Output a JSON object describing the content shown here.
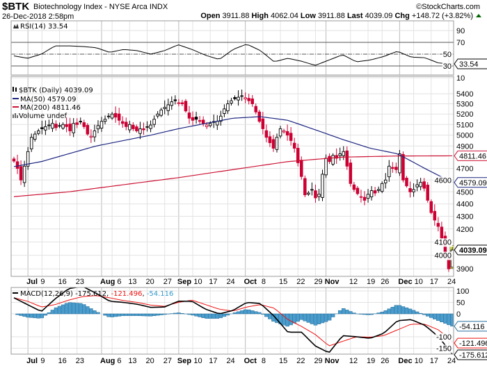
{
  "header": {
    "symbol": "$BTK",
    "name": "Biotechnology Index - NYSE Arca  INDX",
    "copyright": "©StockCharts.com",
    "datetime": "26-Dec-2018 2:58pm",
    "open_label": "Open",
    "open": "3911.88",
    "high_label": "High",
    "high": "4062.04",
    "low_label": "Low",
    "low": "3911.88",
    "last_label": "Last",
    "last": "4039.09",
    "chg_label": "Chg",
    "chg": "+148.72 (+3.82%)"
  },
  "rsi_panel": {
    "legend": "RSI(14) 33.54",
    "tag": "33.54"
  },
  "price_panel": {
    "legend_main": "$BTK (Daily) 4039.09",
    "legend_ma50": "MA(50) 4579.09",
    "legend_ma200": "MA(200) 4811.46",
    "legend_volume": "Volume undef",
    "tag_last": "4039.09",
    "tag_ma50": "4579.09",
    "tag_ma200": "4811.46"
  },
  "macd_panel": {
    "legend_name": "MACD(12,26,9)",
    "legend_macd": "-175.612",
    "legend_signal": "-121.496",
    "legend_hist": "-54.116",
    "tag_macd": "-175.612",
    "tag_signal": "-121.496",
    "tag_hist": "-54.116"
  },
  "colors": {
    "down": "#cc0033",
    "up": "#000000",
    "ma50": "#1a237e",
    "ma200": "#cc1133",
    "histogram": "#4a9ccc",
    "signal": "#ee1111",
    "rsi_fill": "#d9787f",
    "highlight": "#ffff66"
  },
  "chart_data": {
    "type": "candlestick",
    "title": "$BTK Biotechnology Index - NYSE Arca INDX (Daily)",
    "date_range": [
      "2018-06-26",
      "2018-12-26"
    ],
    "price_scale": "log",
    "price_ticks": [
      5400,
      5300,
      5200,
      5100,
      5000,
      4900,
      4700,
      4600,
      4500,
      4400,
      4300,
      4200,
      4100,
      4000,
      3900
    ],
    "x_ticks": [
      {
        "label": "Jul",
        "i": 4,
        "bold": true
      },
      {
        "label": "9",
        "i": 8
      },
      {
        "label": "16",
        "i": 13
      },
      {
        "label": "23",
        "i": 18
      },
      {
        "label": "Aug",
        "i": 25,
        "bold": true
      },
      {
        "label": "6",
        "i": 28
      },
      {
        "label": "13",
        "i": 33
      },
      {
        "label": "20",
        "i": 38
      },
      {
        "label": "27",
        "i": 43
      },
      {
        "label": "Sep",
        "i": 47,
        "bold": true
      },
      {
        "label": "10",
        "i": 51
      },
      {
        "label": "17",
        "i": 56
      },
      {
        "label": "24",
        "i": 61
      },
      {
        "label": "Oct",
        "i": 66,
        "bold": true
      },
      {
        "label": "8",
        "i": 71
      },
      {
        "label": "15",
        "i": 76
      },
      {
        "label": "22",
        "i": 81
      },
      {
        "label": "29",
        "i": 86
      },
      {
        "label": "Nov",
        "i": 89,
        "bold": true
      },
      {
        "label": "12",
        "i": 96
      },
      {
        "label": "19",
        "i": 101
      },
      {
        "label": "26",
        "i": 105
      },
      {
        "label": "Dec",
        "i": 110,
        "bold": true
      },
      {
        "label": "10",
        "i": 114
      },
      {
        "label": "17",
        "i": 119
      },
      {
        "label": "24",
        "i": 124
      }
    ],
    "price": {
      "close": [
        4765,
        4700,
        4600,
        4720,
        4850,
        4980,
        5010,
        5040,
        5060,
        5080,
        5095,
        5110,
        5070,
        5090,
        5100,
        5080,
        5040,
        5110,
        5100,
        5130,
        5080,
        5010,
        4990,
        5040,
        5090,
        5130,
        5150,
        5180,
        5200,
        5170,
        5140,
        5110,
        5080,
        5100,
        5060,
        5040,
        5060,
        5050,
        5080,
        5095,
        5150,
        5200,
        5240,
        5265,
        5290,
        5320,
        5330,
        5310,
        5300,
        5230,
        5160,
        5140,
        5150,
        5130,
        5110,
        5095,
        5110,
        5120,
        5130,
        5180,
        5250,
        5300,
        5330,
        5350,
        5365,
        5380,
        5360,
        5330,
        5300,
        5220,
        5130,
        5060,
        4980,
        4930,
        4880,
        4980,
        5060,
        5040,
        5000,
        4950,
        4880,
        4750,
        4630,
        4475,
        4490,
        4520,
        4450,
        4480,
        4650,
        4790,
        4760,
        4815,
        4790,
        4830,
        4850,
        4720,
        4570,
        4520,
        4485,
        4460,
        4430,
        4480,
        4510,
        4490,
        4520,
        4570,
        4600,
        4720,
        4700,
        4690,
        4830,
        4600,
        4550,
        4500,
        4520,
        4560,
        4580,
        4530,
        4430,
        4330,
        4270,
        4220,
        4130,
        3995,
        3900,
        4039.09
      ],
      "last_candle": {
        "open": 3911.88,
        "high": 4062.04,
        "low": 3911.88,
        "close": 4039.09
      }
    },
    "ma50_sampled": [
      4716,
      4760,
      4830,
      4900,
      4950,
      5000,
      5060,
      5110,
      5160,
      5175,
      5140,
      5050,
      4960,
      4880,
      4830,
      4700,
      4579.09
    ],
    "ma200_sampled": [
      4460,
      4500,
      4560,
      4620,
      4690,
      4760,
      4800,
      4810,
      4811.46
    ],
    "rsi": {
      "period": 14,
      "ticks": [
        90,
        70,
        50,
        30,
        10
      ],
      "overbought": 70,
      "oversold": 30,
      "values_sampled": [
        47,
        43,
        50,
        64,
        64,
        63,
        61,
        53,
        58,
        56,
        50,
        56,
        66,
        58,
        48,
        41,
        58,
        67,
        56,
        37,
        43,
        38,
        31,
        40,
        49,
        37,
        40,
        46,
        55,
        45,
        44,
        35,
        33.54
      ]
    },
    "macd": {
      "params": [
        12,
        26,
        9
      ],
      "ticks": [
        100,
        50,
        0,
        -100,
        -150
      ],
      "macd_sampled": [
        70,
        40,
        10,
        65,
        110,
        120,
        90,
        55,
        50,
        42,
        28,
        30,
        55,
        55,
        20,
        0,
        15,
        50,
        45,
        -10,
        -80,
        -80,
        -140,
        -170,
        -95,
        -100,
        -107,
        -85,
        -30,
        -25,
        -50,
        -100,
        -175.612
      ],
      "signal_sampled": [
        70,
        55,
        30,
        40,
        60,
        75,
        80,
        70,
        58,
        50,
        38,
        33,
        50,
        60,
        40,
        20,
        12,
        30,
        40,
        25,
        -25,
        -55,
        -90,
        -140,
        -120,
        -100,
        -102,
        -95,
        -70,
        -45,
        -45,
        -70,
        -121.496
      ]
    }
  }
}
